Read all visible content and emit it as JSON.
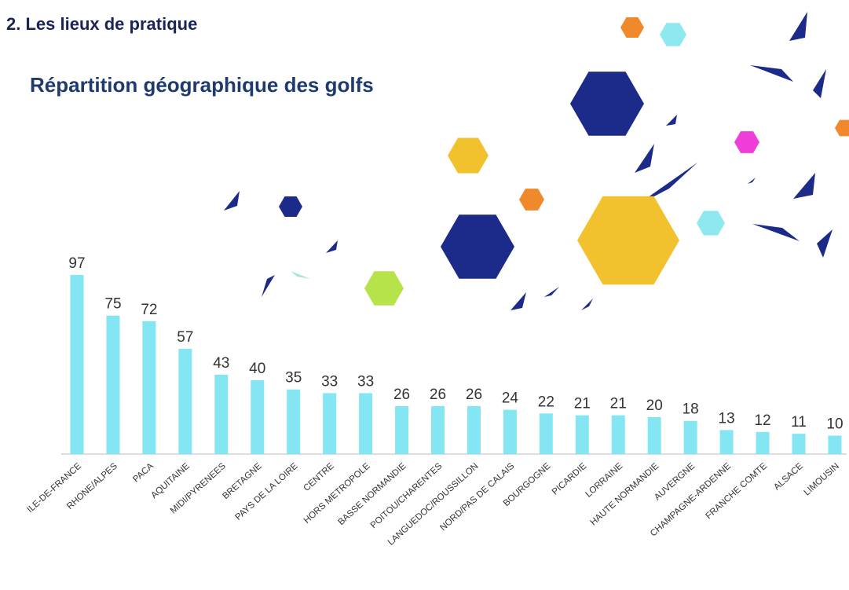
{
  "page_title": "2. Les lieux de pratique",
  "chart_data": {
    "type": "bar",
    "title": "Répartition géographique des golfs",
    "categories": [
      "ILE-DE-FRANCE",
      "RHONE/ALPES",
      "PACA",
      "AQUITAINE",
      "MIDI/PYRENEES",
      "BRETAGNE",
      "PAYS DE LA LOIRE",
      "CENTRE",
      "HORS METROPOLE",
      "BASSE NORMANDIE",
      "POITOU/CHARENTES",
      "LANGUEDOC/ROUSSILLON",
      "NORD/PAS DE CALAIS",
      "BOURGOGNE",
      "PICARDIE",
      "LORRAINE",
      "HAUTE NORMANDIE",
      "AUVERGNE",
      "CHAMPAGNE-ARDENNE",
      "FRANCHE COMTE",
      "ALSACE",
      "LIMOUSIN"
    ],
    "values": [
      97,
      75,
      72,
      57,
      43,
      40,
      35,
      33,
      33,
      26,
      26,
      26,
      24,
      22,
      21,
      21,
      20,
      18,
      13,
      12,
      11,
      10
    ],
    "color": "#84e6f2"
  }
}
